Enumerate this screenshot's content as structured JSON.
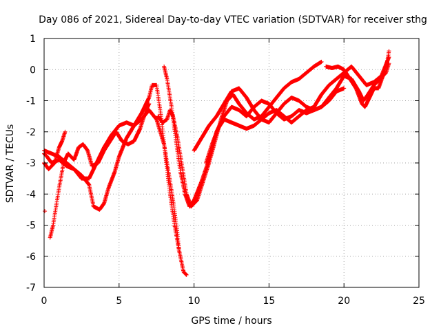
{
  "chart_data": {
    "type": "scatter",
    "title": "Day 086 of 2021, Sidereal Day-to-day VTEC variation (SDTVAR) for receiver sthg",
    "xlabel": "GPS time / hours",
    "ylabel": "SDTVAR / TECUs",
    "xlim": [
      0,
      25
    ],
    "ylim": [
      -7,
      1
    ],
    "xticks": [
      0,
      5,
      10,
      15,
      20,
      25
    ],
    "yticks": [
      -7,
      -6,
      -5,
      -4,
      -3,
      -2,
      -1,
      0,
      1
    ],
    "xtick_labels": [
      "0",
      "5",
      "10",
      "15",
      "20",
      "25"
    ],
    "ytick_labels": [
      "-7",
      "-6",
      "-5",
      "-4",
      "-3",
      "-2",
      "-1",
      "0",
      "1"
    ],
    "grid": true,
    "legend": "none",
    "marker": "+",
    "color": "#ff0000",
    "series": [
      {
        "points": [
          [
            0.0,
            -2.7
          ],
          [
            0.2,
            -2.8
          ],
          [
            0.5,
            -3.0
          ],
          [
            1.0,
            -2.9
          ],
          [
            1.5,
            -3.1
          ],
          [
            2.0,
            -3.2
          ],
          [
            2.5,
            -3.4
          ],
          [
            3.0,
            -3.7
          ],
          [
            3.3,
            -4.4
          ],
          [
            3.7,
            -4.5
          ],
          [
            4.0,
            -4.3
          ],
          [
            4.3,
            -3.8
          ],
          [
            4.7,
            -3.3
          ],
          [
            5.0,
            -2.8
          ],
          [
            5.5,
            -2.2
          ],
          [
            6.0,
            -1.8
          ],
          [
            6.5,
            -1.4
          ],
          [
            7.0,
            -0.9
          ],
          [
            7.2,
            -0.5
          ],
          [
            7.5,
            -0.5
          ],
          [
            7.8,
            -1.5
          ],
          [
            8.1,
            -2.8
          ],
          [
            8.4,
            -4.0
          ],
          [
            8.7,
            -5.0
          ],
          [
            9.0,
            -5.8
          ],
          [
            9.3,
            -6.5
          ],
          [
            9.5,
            -6.6
          ]
        ]
      },
      {
        "points": [
          [
            0.0,
            -2.6
          ],
          [
            0.5,
            -2.7
          ],
          [
            1.0,
            -2.8
          ],
          [
            1.5,
            -3.0
          ],
          [
            2.0,
            -3.2
          ],
          [
            2.5,
            -3.5
          ],
          [
            3.0,
            -3.5
          ],
          [
            3.5,
            -3.0
          ],
          [
            4.0,
            -2.5
          ],
          [
            4.5,
            -2.1
          ],
          [
            5.0,
            -1.8
          ],
          [
            5.5,
            -1.7
          ],
          [
            6.0,
            -1.8
          ],
          [
            6.5,
            -1.6
          ],
          [
            7.0,
            -1.3
          ],
          [
            7.5,
            -1.6
          ],
          [
            8.0,
            -2.4
          ],
          [
            8.3,
            -3.3
          ],
          [
            8.6,
            -4.2
          ],
          [
            8.9,
            -5.3
          ],
          [
            9.0,
            -5.8
          ]
        ]
      },
      {
        "points": [
          [
            0.0,
            -3.0
          ],
          [
            0.3,
            -3.2
          ],
          [
            0.7,
            -3.0
          ],
          [
            1.0,
            -2.5
          ],
          [
            1.2,
            -2.3
          ],
          [
            1.4,
            -2.0
          ]
        ]
      },
      {
        "points": [
          [
            0.4,
            -5.4
          ],
          [
            0.6,
            -5.0
          ],
          [
            0.8,
            -4.4
          ],
          [
            1.0,
            -3.8
          ],
          [
            1.3,
            -3.0
          ],
          [
            1.6,
            -2.7
          ],
          [
            2.0,
            -2.9
          ],
          [
            2.3,
            -2.5
          ],
          [
            2.6,
            -2.4
          ],
          [
            2.9,
            -2.6
          ],
          [
            3.2,
            -3.1
          ],
          [
            3.6,
            -3.0
          ],
          [
            4.0,
            -2.6
          ],
          [
            4.4,
            -2.3
          ],
          [
            4.8,
            -2.0
          ],
          [
            5.2,
            -2.3
          ],
          [
            5.6,
            -2.4
          ],
          [
            6.0,
            -2.3
          ],
          [
            6.4,
            -1.9
          ],
          [
            6.8,
            -1.3
          ],
          [
            7.0,
            -1.1
          ]
        ]
      },
      {
        "points": [
          [
            7.6,
            -1.5
          ],
          [
            7.9,
            -1.7
          ],
          [
            8.2,
            -1.6
          ],
          [
            8.4,
            -1.3
          ],
          [
            8.6,
            -1.5
          ],
          [
            8.9,
            -2.2
          ],
          [
            9.2,
            -3.1
          ],
          [
            9.5,
            -4.0
          ],
          [
            9.8,
            -4.4
          ],
          [
            10.2,
            -4.2
          ],
          [
            10.6,
            -3.6
          ],
          [
            11.0,
            -3.0
          ],
          [
            11.4,
            -2.3
          ],
          [
            11.8,
            -1.6
          ],
          [
            12.2,
            -1.0
          ],
          [
            12.6,
            -0.8
          ],
          [
            13.0,
            -1.1
          ],
          [
            13.5,
            -1.4
          ],
          [
            14.0,
            -1.6
          ],
          [
            14.5,
            -1.5
          ],
          [
            15.0,
            -1.2
          ],
          [
            15.5,
            -0.9
          ],
          [
            16.0,
            -0.6
          ],
          [
            16.5,
            -0.4
          ],
          [
            17.0,
            -0.3
          ],
          [
            17.5,
            -0.1
          ],
          [
            18.0,
            0.1
          ],
          [
            18.5,
            0.25
          ]
        ]
      },
      {
        "points": [
          [
            8.0,
            0.1
          ],
          [
            8.2,
            -0.3
          ],
          [
            8.5,
            -1.2
          ],
          [
            8.8,
            -2.3
          ],
          [
            9.1,
            -3.3
          ],
          [
            9.4,
            -4.0
          ],
          [
            9.7,
            -4.4
          ],
          [
            10.0,
            -4.2
          ],
          [
            10.5,
            -3.6
          ],
          [
            11.0,
            -2.9
          ],
          [
            11.5,
            -2.0
          ],
          [
            12.0,
            -1.5
          ],
          [
            12.5,
            -1.2
          ],
          [
            13.0,
            -1.3
          ],
          [
            13.5,
            -1.5
          ],
          [
            14.0,
            -1.2
          ],
          [
            14.5,
            -1.0
          ],
          [
            15.0,
            -1.1
          ],
          [
            15.5,
            -1.4
          ],
          [
            16.0,
            -1.6
          ],
          [
            16.5,
            -1.5
          ],
          [
            17.0,
            -1.3
          ],
          [
            17.5,
            -1.4
          ],
          [
            18.0,
            -1.3
          ],
          [
            18.5,
            -1.2
          ],
          [
            19.0,
            -1.0
          ],
          [
            19.5,
            -0.7
          ],
          [
            20.0,
            -0.6
          ]
        ]
      },
      {
        "points": [
          [
            10.0,
            -2.6
          ],
          [
            10.5,
            -2.2
          ],
          [
            11.0,
            -1.8
          ],
          [
            11.5,
            -1.5
          ],
          [
            12.0,
            -1.1
          ],
          [
            12.5,
            -0.7
          ],
          [
            13.0,
            -0.6
          ],
          [
            13.5,
            -0.9
          ],
          [
            14.0,
            -1.3
          ],
          [
            14.5,
            -1.6
          ],
          [
            15.0,
            -1.7
          ],
          [
            15.5,
            -1.4
          ],
          [
            16.0,
            -1.1
          ],
          [
            16.5,
            -0.9
          ],
          [
            17.0,
            -1.0
          ],
          [
            17.5,
            -1.2
          ],
          [
            18.0,
            -1.3
          ],
          [
            18.5,
            -1.2
          ],
          [
            19.0,
            -0.9
          ],
          [
            19.5,
            -0.6
          ],
          [
            20.0,
            -0.2
          ],
          [
            20.5,
            -0.3
          ],
          [
            21.0,
            -0.7
          ],
          [
            21.3,
            -1.0
          ],
          [
            21.6,
            -0.8
          ],
          [
            22.0,
            -0.5
          ],
          [
            22.4,
            -0.3
          ],
          [
            22.8,
            -0.1
          ],
          [
            23.0,
            0.2
          ]
        ]
      },
      {
        "points": [
          [
            10.8,
            -3.0
          ],
          [
            11.2,
            -2.4
          ],
          [
            11.6,
            -1.9
          ],
          [
            12.0,
            -1.6
          ],
          [
            12.5,
            -1.7
          ],
          [
            13.0,
            -1.8
          ],
          [
            13.5,
            -1.9
          ],
          [
            14.0,
            -1.8
          ],
          [
            14.5,
            -1.6
          ],
          [
            15.0,
            -1.4
          ],
          [
            15.5,
            -1.3
          ],
          [
            16.0,
            -1.5
          ],
          [
            16.5,
            -1.7
          ],
          [
            17.0,
            -1.5
          ],
          [
            17.5,
            -1.3
          ],
          [
            18.0,
            -1.2
          ],
          [
            18.5,
            -0.8
          ],
          [
            19.0,
            -0.5
          ],
          [
            19.5,
            -0.3
          ],
          [
            20.0,
            -0.1
          ],
          [
            20.5,
            0.1
          ],
          [
            21.0,
            -0.2
          ],
          [
            21.5,
            -0.5
          ],
          [
            22.0,
            -0.4
          ],
          [
            22.5,
            -0.2
          ],
          [
            23.0,
            0.4
          ]
        ]
      },
      {
        "points": [
          [
            18.8,
            0.1
          ],
          [
            19.2,
            0.05
          ],
          [
            19.6,
            0.1
          ],
          [
            20.0,
            0.0
          ],
          [
            20.4,
            -0.3
          ],
          [
            20.8,
            -0.6
          ],
          [
            21.2,
            -1.1
          ],
          [
            21.4,
            -1.2
          ],
          [
            21.7,
            -0.9
          ],
          [
            22.0,
            -0.6
          ],
          [
            22.3,
            -0.6
          ],
          [
            22.6,
            -0.2
          ],
          [
            22.9,
            0.3
          ],
          [
            23.0,
            0.6
          ]
        ]
      }
    ]
  }
}
